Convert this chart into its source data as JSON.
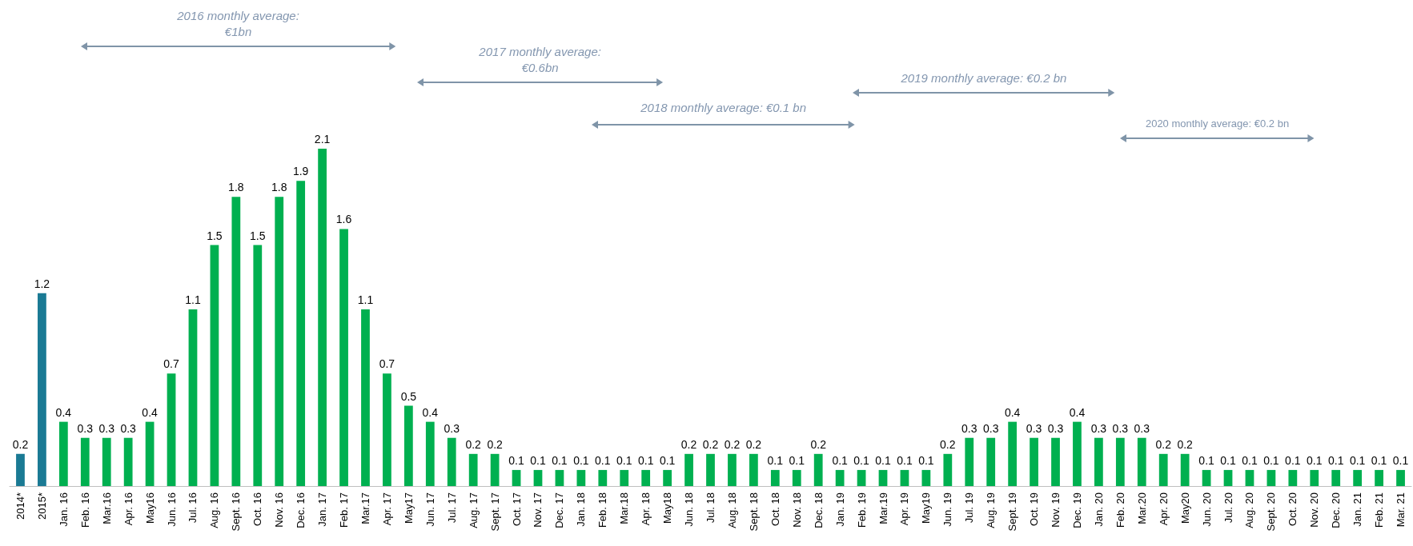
{
  "chart_data": {
    "type": "bar",
    "categories": [
      "2014*",
      "2015*",
      "Jan. 16",
      "Feb. 16",
      "Mar.16",
      "Apr. 16",
      "May16",
      "Jun. 16",
      "Jul. 16",
      "Aug. 16",
      "Sept. 16",
      "Oct. 16",
      "Nov. 16",
      "Dec. 16",
      "Jan. 17",
      "Feb. 17",
      "Mar.17",
      "Apr. 17",
      "May17",
      "Jun. 17",
      "Jul. 17",
      "Aug. 17",
      "Sept. 17",
      "Oct. 17",
      "Nov. 17",
      "Dec. 17",
      "Jan. 18",
      "Feb. 18",
      "Mar.18",
      "Apr. 18",
      "May18",
      "Jun. 18",
      "Jul. 18",
      "Aug. 18",
      "Sept. 18",
      "Oct. 18",
      "Nov. 18",
      "Dec. 18",
      "Jan. 19",
      "Feb. 19",
      "Mar.19",
      "Apr. 19",
      "May19",
      "Jun. 19",
      "Jul. 19",
      "Aug. 19",
      "Sept. 19",
      "Oct. 19",
      "Nov. 19",
      "Dec. 19",
      "Jan. 20",
      "Feb. 20",
      "Mar.20",
      "Apr. 20",
      "May20",
      "Jun. 20",
      "Jul. 20",
      "Aug. 20",
      "Sept. 20",
      "Oct. 20",
      "Nov. 20",
      "Dec. 20",
      "Jan. 21",
      "Feb. 21",
      "Mar. 21"
    ],
    "values": [
      0.2,
      1.2,
      0.4,
      0.3,
      0.3,
      0.3,
      0.4,
      0.7,
      1.1,
      1.5,
      1.8,
      1.5,
      1.8,
      1.9,
      2.1,
      1.6,
      1.1,
      0.7,
      0.5,
      0.4,
      0.3,
      0.2,
      0.2,
      0.1,
      0.1,
      0.1,
      0.1,
      0.1,
      0.1,
      0.1,
      0.1,
      0.2,
      0.2,
      0.2,
      0.2,
      0.1,
      0.1,
      0.2,
      0.1,
      0.1,
      0.1,
      0.1,
      0.1,
      0.2,
      0.3,
      0.3,
      0.4,
      0.3,
      0.3,
      0.4,
      0.3,
      0.3,
      0.3,
      0.2,
      0.2,
      0.1,
      0.1,
      0.1,
      0.1,
      0.1,
      0.1,
      0.1,
      0.1,
      0.1,
      0.1
    ],
    "colors": [
      "#1a7a94",
      "#1a7a94",
      "#00b050",
      "#00b050",
      "#00b050",
      "#00b050",
      "#00b050",
      "#00b050",
      "#00b050",
      "#00b050",
      "#00b050",
      "#00b050",
      "#00b050",
      "#00b050",
      "#00b050",
      "#00b050",
      "#00b050",
      "#00b050",
      "#00b050",
      "#00b050",
      "#00b050",
      "#00b050",
      "#00b050",
      "#00b050",
      "#00b050",
      "#00b050",
      "#00b050",
      "#00b050",
      "#00b050",
      "#00b050",
      "#00b050",
      "#00b050",
      "#00b050",
      "#00b050",
      "#00b050",
      "#00b050",
      "#00b050",
      "#00b050",
      "#00b050",
      "#00b050",
      "#00b050",
      "#00b050",
      "#00b050",
      "#00b050",
      "#00b050",
      "#00b050",
      "#00b050",
      "#00b050",
      "#00b050",
      "#00b050",
      "#00b050",
      "#00b050",
      "#00b050",
      "#00b050",
      "#00b050",
      "#00b050",
      "#00b050",
      "#00b050",
      "#00b050",
      "#00b050",
      "#00b050",
      "#00b050",
      "#00b050",
      "#00b050",
      "#00b050"
    ],
    "data_labels": true,
    "annotations": [
      "2016 monthly average:\n€1bn",
      "2017 monthly average:\n€0.6bn",
      "2018 monthly average: €0.1 bn",
      "2019 monthly average: €0.2 bn",
      "2020 monthly average: €0.2 bn"
    ]
  }
}
